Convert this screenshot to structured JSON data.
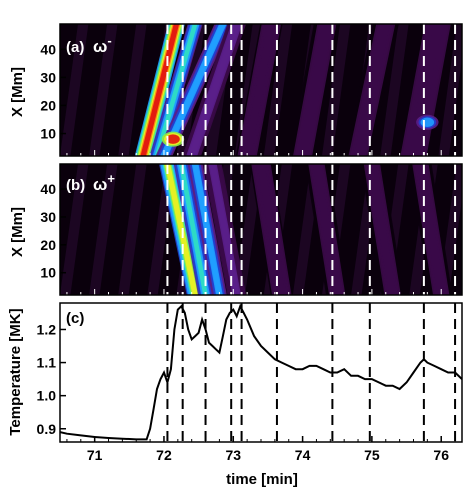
{
  "chart_data": [
    {
      "type": "heatmap",
      "panel_label": "(a)",
      "panel_symbol": "ω",
      "panel_symbol_sup": "-",
      "ylabel": "X [Mm]",
      "yticks": [
        "10",
        "20",
        "30",
        "40"
      ],
      "ylim": [
        2,
        49
      ],
      "xlim": [
        70.5,
        76.3
      ],
      "colormap": "black-purple-blue-cyan-green-yellow-red",
      "ridges": [
        {
          "x_bottom": 71.7,
          "x_top": 72.18,
          "intensity": 1.0,
          "width": 0.09
        },
        {
          "x_bottom": 71.9,
          "x_top": 72.45,
          "intensity": 0.55,
          "width": 0.08
        },
        {
          "x_bottom": 72.0,
          "x_top": 72.85,
          "intensity": 0.5,
          "width": 0.09
        },
        {
          "x_bottom": 72.4,
          "x_top": 73.05,
          "intensity": 0.25,
          "width": 0.1
        },
        {
          "x_bottom": 73.2,
          "x_top": 73.55,
          "intensity": 0.12,
          "width": 0.12
        },
        {
          "x_bottom": 74.0,
          "x_top": 74.35,
          "intensity": 0.1,
          "width": 0.14
        },
        {
          "x_bottom": 74.8,
          "x_top": 75.2,
          "intensity": 0.1,
          "width": 0.14
        },
        {
          "x_bottom": 75.6,
          "x_top": 75.95,
          "intensity": 0.14,
          "width": 0.14
        }
      ],
      "hot_spots": [
        {
          "x": 72.13,
          "y": 8,
          "intensity": 0.95
        },
        {
          "x": 75.8,
          "y": 14,
          "intensity": 0.4
        }
      ]
    },
    {
      "type": "heatmap",
      "panel_label": "(b)",
      "panel_symbol": "ω",
      "panel_symbol_sup": "+",
      "ylabel": "X [Mm]",
      "yticks": [
        "10",
        "20",
        "30",
        "40"
      ],
      "ylim": [
        2,
        49
      ],
      "xlim": [
        70.5,
        76.3
      ],
      "colormap": "black-purple-blue-cyan-green-yellow-red",
      "ridges": [
        {
          "x_top": 72.05,
          "x_bottom": 72.45,
          "intensity": 0.75,
          "width": 0.09
        },
        {
          "x_top": 72.25,
          "x_bottom": 72.6,
          "intensity": 0.55,
          "width": 0.08
        },
        {
          "x_top": 72.45,
          "x_bottom": 72.8,
          "intensity": 0.45,
          "width": 0.08
        },
        {
          "x_top": 72.7,
          "x_bottom": 73.05,
          "intensity": 0.2,
          "width": 0.1
        },
        {
          "x_top": 73.4,
          "x_bottom": 73.7,
          "intensity": 0.12,
          "width": 0.12
        },
        {
          "x_top": 74.2,
          "x_bottom": 74.5,
          "intensity": 0.1,
          "width": 0.12
        },
        {
          "x_top": 75.0,
          "x_bottom": 75.3,
          "intensity": 0.1,
          "width": 0.12
        },
        {
          "x_top": 75.7,
          "x_bottom": 76.0,
          "intensity": 0.1,
          "width": 0.12
        }
      ],
      "hot_spots": []
    },
    {
      "type": "line",
      "panel_label": "(c)",
      "xlabel": "time [min]",
      "ylabel": "Temperature [MK]",
      "xticks": [
        "71",
        "72",
        "73",
        "74",
        "75",
        "76"
      ],
      "yticks": [
        "0.9",
        "1.0",
        "1.1",
        "1.2"
      ],
      "xlim": [
        70.5,
        76.3
      ],
      "ylim": [
        0.86,
        1.28
      ],
      "series": [
        {
          "x": [
            70.5,
            70.6,
            70.8,
            71.0,
            71.2,
            71.4,
            71.6,
            71.75,
            71.8,
            71.85,
            71.9,
            71.95,
            72.0,
            72.05,
            72.1,
            72.15,
            72.2,
            72.25,
            72.3,
            72.35,
            72.4,
            72.45,
            72.5,
            72.55,
            72.6,
            72.65,
            72.7,
            72.75,
            72.8,
            72.85,
            72.9,
            72.95,
            73.0,
            73.05,
            73.1,
            73.15,
            73.2,
            73.3,
            73.4,
            73.5,
            73.6,
            73.7,
            73.8,
            73.9,
            74.0,
            74.1,
            74.2,
            74.3,
            74.4,
            74.5,
            74.6,
            74.7,
            74.8,
            74.9,
            75.0,
            75.1,
            75.2,
            75.3,
            75.4,
            75.5,
            75.6,
            75.7,
            75.75,
            75.8,
            75.9,
            76.0,
            76.1,
            76.2,
            76.3
          ],
          "y": [
            0.89,
            0.885,
            0.88,
            0.875,
            0.872,
            0.87,
            0.868,
            0.868,
            0.9,
            0.96,
            1.02,
            1.05,
            1.07,
            1.04,
            1.08,
            1.2,
            1.26,
            1.27,
            1.25,
            1.2,
            1.17,
            1.18,
            1.19,
            1.23,
            1.2,
            1.16,
            1.15,
            1.14,
            1.13,
            1.18,
            1.23,
            1.25,
            1.26,
            1.24,
            1.27,
            1.25,
            1.23,
            1.18,
            1.15,
            1.13,
            1.11,
            1.1,
            1.09,
            1.08,
            1.08,
            1.09,
            1.09,
            1.08,
            1.07,
            1.07,
            1.08,
            1.06,
            1.06,
            1.05,
            1.05,
            1.04,
            1.03,
            1.03,
            1.02,
            1.04,
            1.07,
            1.1,
            1.11,
            1.1,
            1.09,
            1.08,
            1.07,
            1.07,
            1.05
          ]
        }
      ]
    }
  ],
  "events": [
    72.05,
    72.27,
    72.6,
    72.97,
    73.12,
    73.63,
    74.43,
    74.97,
    75.75,
    76.2
  ],
  "colors": {
    "line": "#000000",
    "dashes_heatmap": "#ffffff",
    "dashes_plot": "#000000",
    "axes": "#000000",
    "heatmap_background": "#0a000c"
  }
}
